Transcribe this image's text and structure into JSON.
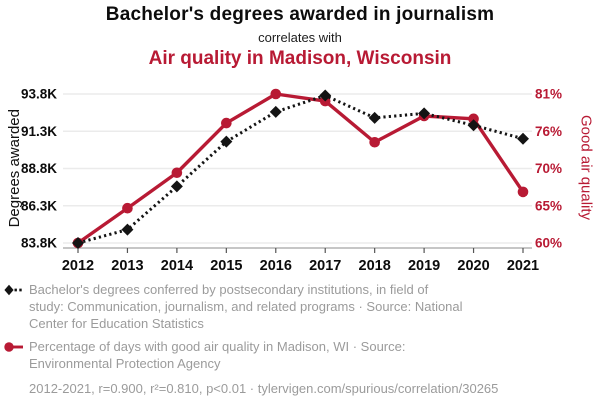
{
  "header": {
    "title": "Bachelor's degrees awarded in journalism",
    "connector": "correlates with",
    "subtitle": "Air quality in Madison, Wisconsin"
  },
  "colors": {
    "series_black": "#141414",
    "series_red": "#b81a34",
    "grid": "#ebebeb",
    "axis_line": "#a3a3a3",
    "tick": "#555555",
    "gray_text": "#9b9b9b"
  },
  "chart_data": {
    "type": "line",
    "x": [
      2012,
      2013,
      2014,
      2015,
      2016,
      2017,
      2018,
      2019,
      2020,
      2021
    ],
    "x_ticks": [
      "2012",
      "2013",
      "2014",
      "2015",
      "2016",
      "2017",
      "2018",
      "2019",
      "2020",
      "2021"
    ],
    "series": [
      {
        "name": "Percentage of days with good air quality in Madison, WI",
        "axis": "right",
        "style": "solid",
        "marker": "circle",
        "values": [
          60.0,
          64.9,
          69.9,
          76.9,
          81.0,
          80.0,
          74.2,
          77.9,
          77.5,
          67.2
        ]
      },
      {
        "name": "Bachelor's degrees conferred by postsecondary institutions, in field of study: Communication, journalism, and related programs",
        "axis": "left",
        "style": "dotted",
        "marker": "diamond",
        "values": [
          83800,
          84700,
          87600,
          90600,
          92600,
          93700,
          92200,
          92500,
          91700,
          90800
        ]
      }
    ],
    "left_axis": {
      "label": "Degrees awarded",
      "ticks": [
        "83.8K",
        "86.3K",
        "88.8K",
        "91.3K",
        "93.8K"
      ],
      "range": [
        83800,
        93800
      ]
    },
    "right_axis": {
      "label": "Good air quality",
      "ticks": [
        "60%",
        "65%",
        "70%",
        "76%",
        "81%"
      ],
      "range": [
        60,
        81
      ]
    },
    "grid": true,
    "legend_position": "bottom"
  },
  "legend": {
    "items": [
      {
        "marker": "black-diamond-dotted",
        "lines": [
          "Bachelor's degrees conferred by postsecondary institutions, in field of",
          "study: Communication, journalism, and related programs · Source: National",
          "Center for Education Statistics"
        ]
      },
      {
        "marker": "red-circle-solid",
        "lines": [
          "Percentage of days with good air quality in Madison, WI · Source:",
          "Environmental Protection Agency"
        ]
      }
    ],
    "footnote": "2012-2021, r=0.900, r²=0.810, p<0.01 · tylervigen.com/spurious/correlation/30265"
  }
}
